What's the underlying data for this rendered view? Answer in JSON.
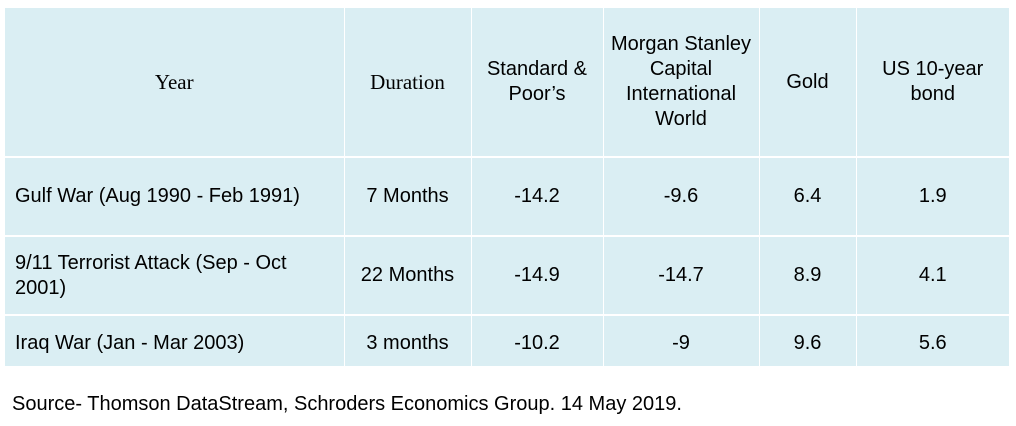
{
  "table": {
    "columns": [
      "Year",
      "Duration",
      "Standard & Poor’s",
      "Morgan Stanley Capital International World",
      "Gold",
      "US 10-year bond"
    ],
    "rows": [
      [
        "Gulf War (Aug 1990 - Feb 1991)",
        "7 Months",
        "-14.2",
        "-9.6",
        "6.4",
        "1.9"
      ],
      [
        "9/11 Terrorist Attack (Sep - Oct 2001)",
        "22 Months",
        "-14.9",
        "-14.7",
        "8.9",
        "4.1"
      ],
      [
        "Iraq War (Jan - Mar 2003)",
        "3 months",
        "-10.2",
        "-9",
        "9.6",
        "5.6"
      ]
    ]
  },
  "source": "Source- Thomson DataStream, Schroders Economics Group. 14 May 2019.",
  "colors": {
    "cell_background": "#daeef3",
    "grid_lines": "#ffffff",
    "text": "#000000"
  }
}
